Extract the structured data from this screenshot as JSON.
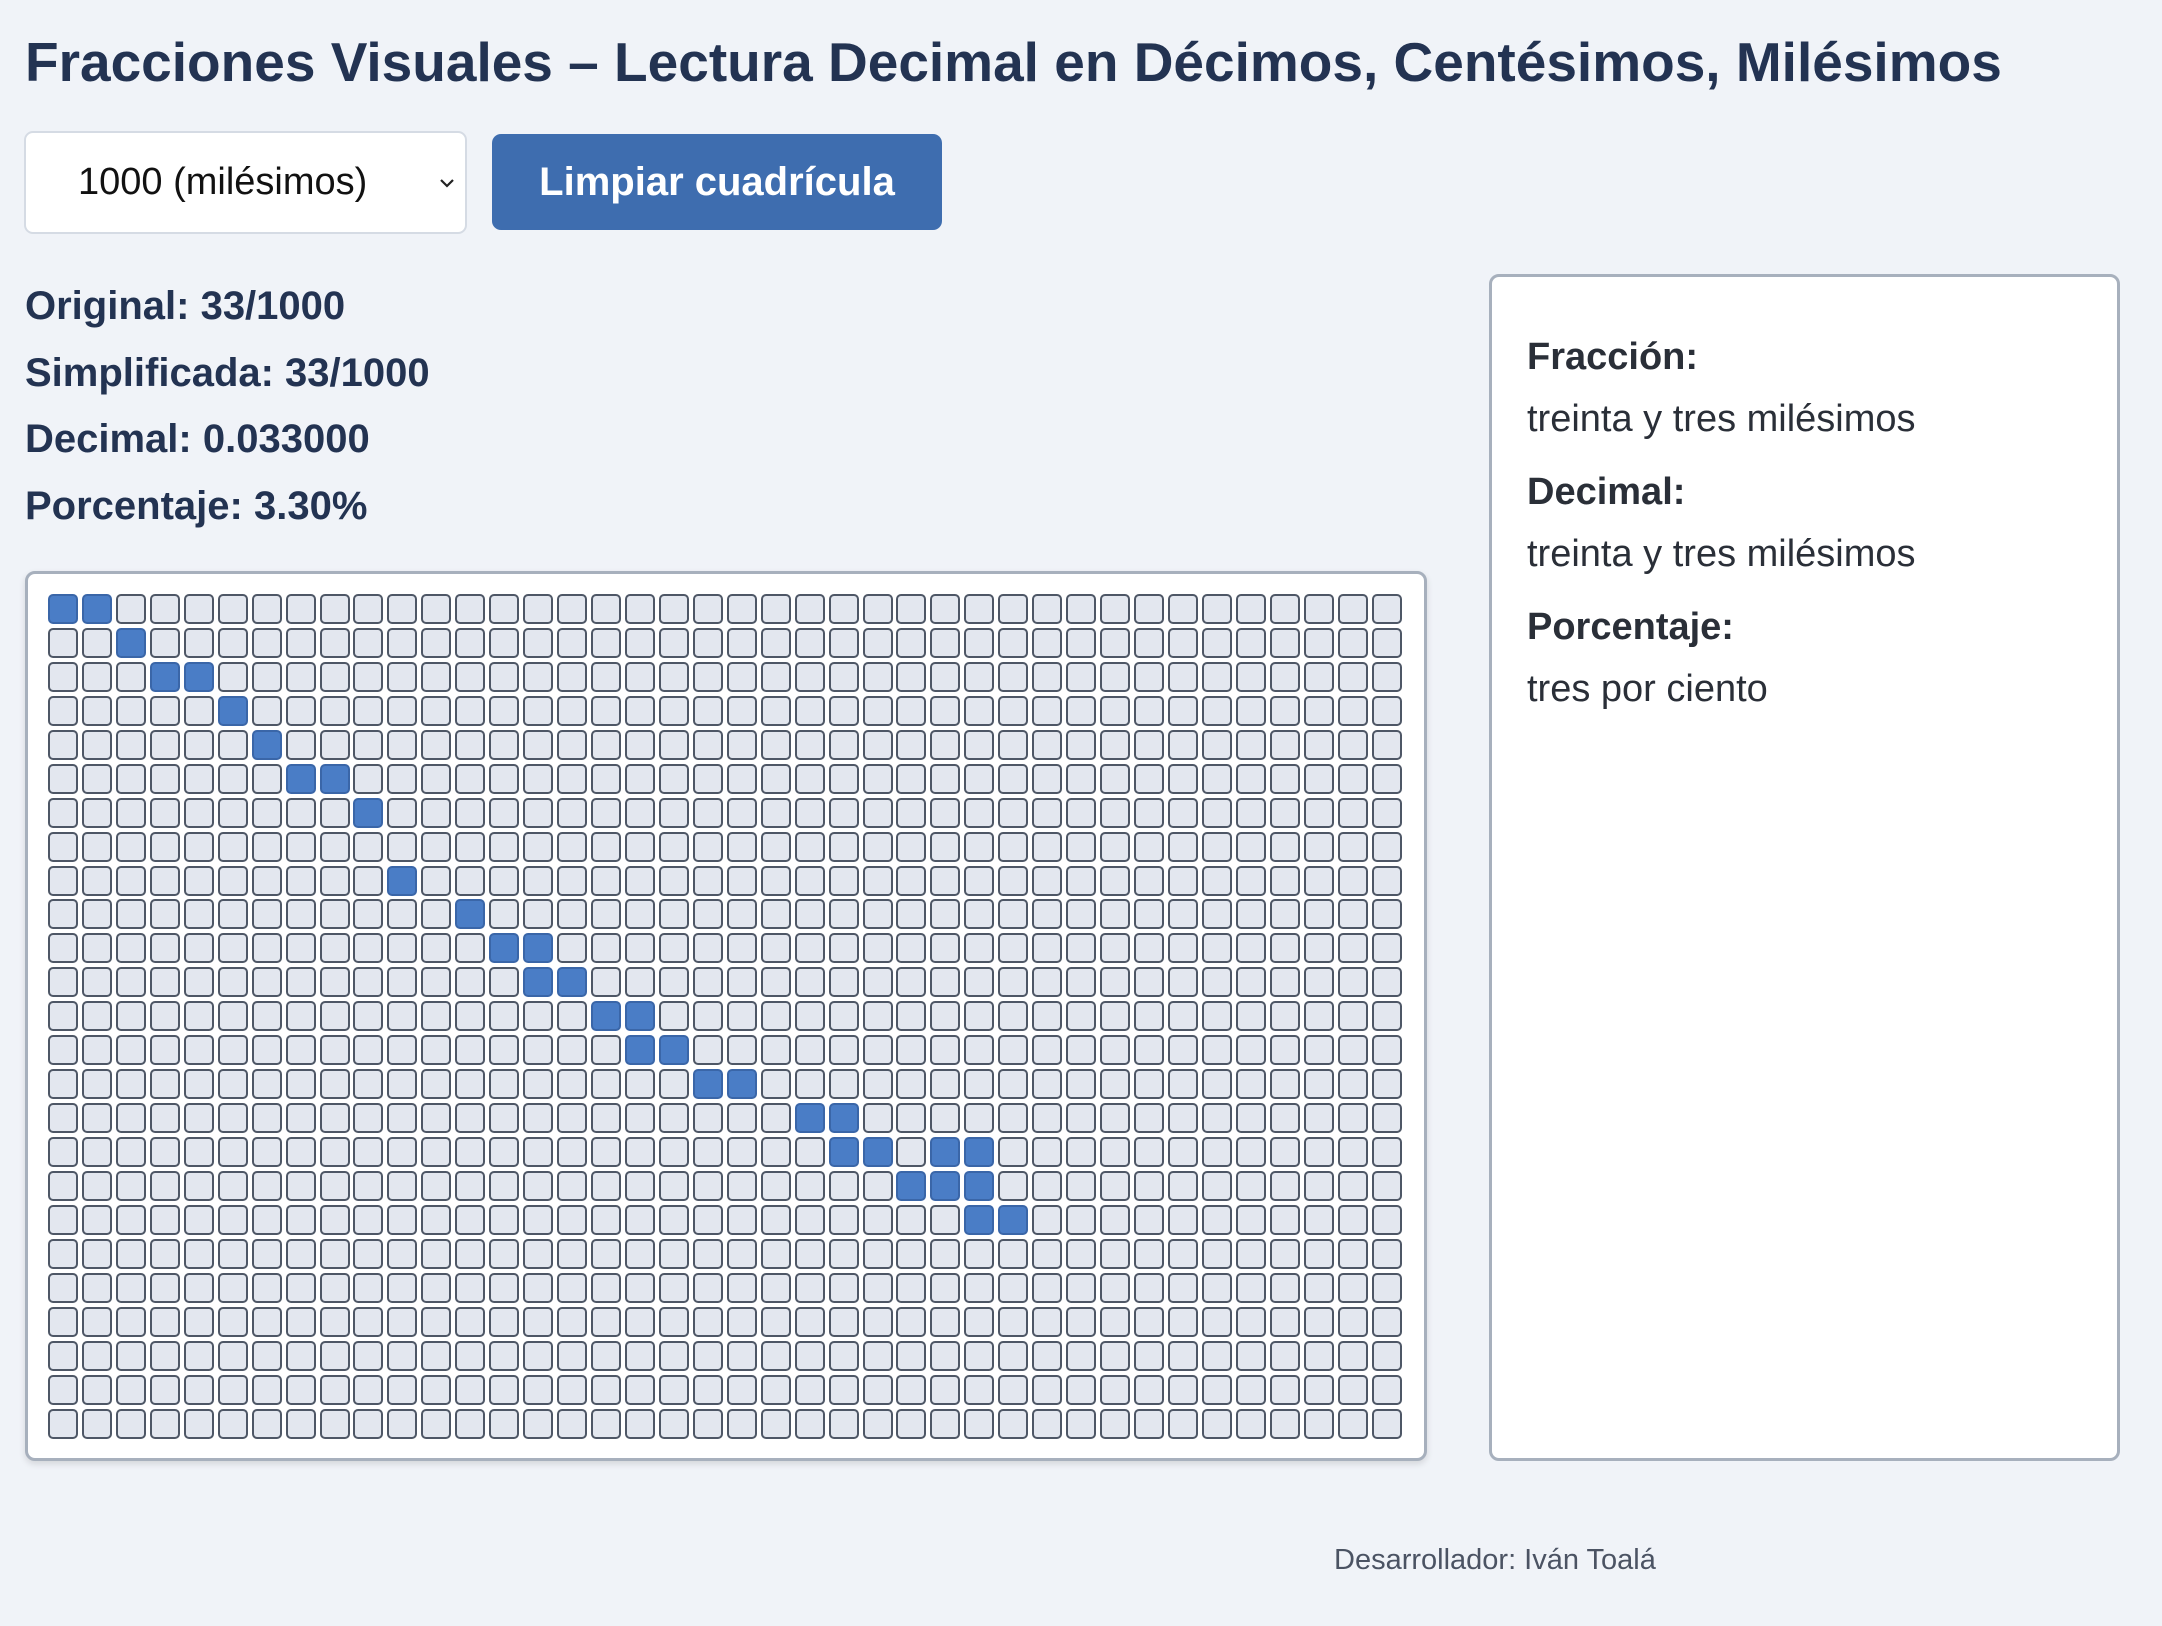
{
  "header": {
    "title": "Fracciones Visuales – Lectura Decimal en Décimos, Centésimos, Milésimos"
  },
  "controls": {
    "denominator_select": {
      "selected": "1000 (milésimos)",
      "icon": "chevron-down-icon"
    },
    "clear_button_label": "Limpiar cuadrícula"
  },
  "stats": {
    "original": "Original: 33/1000",
    "simplified": "Simplificada: 33/1000",
    "decimal": "Decimal: 0.033000",
    "percent": "Porcentaje: 3.30%"
  },
  "grid": {
    "rows": 25,
    "cols": 40,
    "selected_cells": [
      [
        0,
        0
      ],
      [
        0,
        1
      ],
      [
        1,
        2
      ],
      [
        2,
        3
      ],
      [
        2,
        4
      ],
      [
        3,
        5
      ],
      [
        4,
        6
      ],
      [
        5,
        7
      ],
      [
        5,
        8
      ],
      [
        6,
        9
      ],
      [
        8,
        10
      ],
      [
        9,
        12
      ],
      [
        10,
        13
      ],
      [
        10,
        14
      ],
      [
        11,
        14
      ],
      [
        11,
        15
      ],
      [
        12,
        16
      ],
      [
        12,
        17
      ],
      [
        13,
        17
      ],
      [
        13,
        18
      ],
      [
        14,
        19
      ],
      [
        14,
        20
      ],
      [
        15,
        22
      ],
      [
        15,
        23
      ],
      [
        16,
        23
      ],
      [
        16,
        24
      ],
      [
        16,
        26
      ],
      [
        16,
        27
      ],
      [
        17,
        25
      ],
      [
        17,
        26
      ],
      [
        17,
        27
      ],
      [
        18,
        27
      ],
      [
        18,
        28
      ]
    ],
    "colors": {
      "selected": "#4a7dc6",
      "empty": "#e3e7ef",
      "border": "#4e5766"
    }
  },
  "reading": {
    "fraction_label": "Fracción:",
    "fraction_text": "treinta y tres milésimos",
    "decimal_label": "Decimal:",
    "decimal_text": "treinta y tres milésimos",
    "percent_label": "Porcentaje:",
    "percent_text": "tres por ciento"
  },
  "footer": {
    "credit": "Desarrollador: Iván Toalá"
  },
  "colors": {
    "accent": "#3e6daf",
    "heading": "#233352",
    "background": "#f0f3f8"
  }
}
